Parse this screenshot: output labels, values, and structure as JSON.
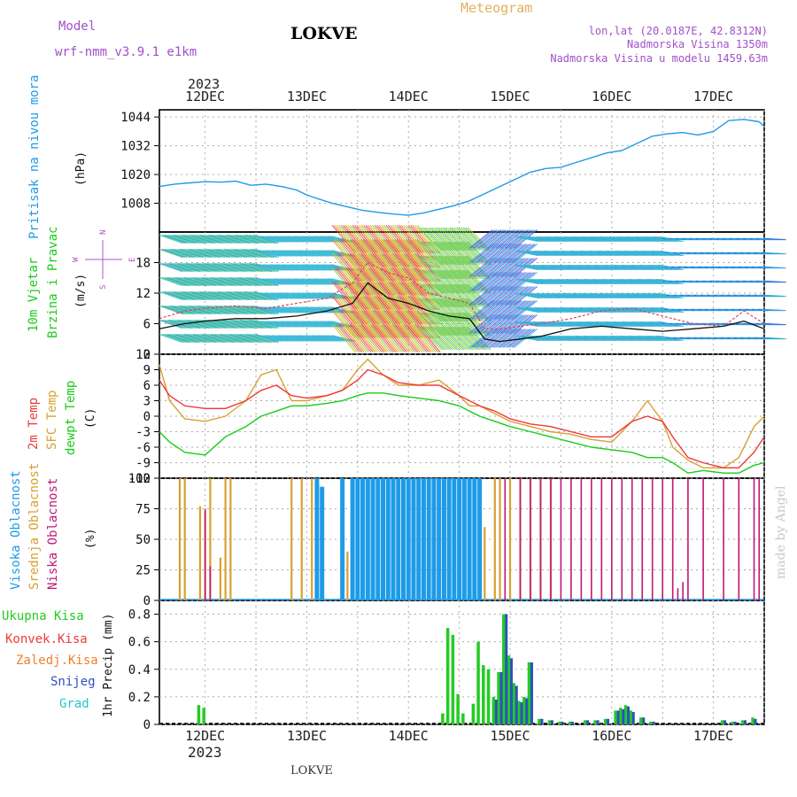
{
  "header": {
    "model_label": "Model",
    "model_name": "wrf-nmm_v3.9.1  e1km",
    "station": "LOKVE",
    "product": "Meteogram",
    "lonlat": "lon,lat (20.0187E, 42.8312N)",
    "elevation": "Nadmorska Visina 1350m",
    "model_elevation": "Nadmorska Visina u modelu 1459.63m",
    "watermark": "made by Angel",
    "footer_station": "LOKVE"
  },
  "colors": {
    "pressure": "#1e9be8",
    "temp2m": "#ee3a3a",
    "sfc_temp": "#d8a030",
    "dewpt": "#18cc18",
    "high_cloud": "#1e9be8",
    "mid_cloud": "#d8a030",
    "low_cloud": "#c01878",
    "total_precip": "#22cc22",
    "conv_precip": "#ee3a3a",
    "frz_precip": "#f08030",
    "snow": "#3050c0",
    "hail": "#20c8c8",
    "wind_speed": "#111111",
    "wind_gust": "#e04060",
    "header_purple": "#a050c8",
    "header_gold": "#e0b060",
    "grid": "#aaaaaa"
  },
  "top_axis": {
    "year": "2023",
    "day_labels": [
      "12DEC",
      "13DEC",
      "14DEC",
      "15DEC",
      "16DEC",
      "17DEC"
    ]
  },
  "bottom_axis": {
    "year": "2023",
    "day_labels": [
      "12DEC",
      "13DEC",
      "14DEC",
      "15DEC",
      "16DEC",
      "17DEC"
    ]
  },
  "panel_labels": {
    "pressure": {
      "title": "Pritisak na nivou mora",
      "unit": "(hPa)"
    },
    "wind": {
      "title1": "10m Vjetar",
      "title2": "Brzina i Pravac",
      "unit": "(m/s)",
      "compass": "N",
      "compass_s": "S",
      "compass_w": "W",
      "compass_e": "E"
    },
    "temp": {
      "l1": "2m Temp",
      "l2": "SFC Temp",
      "l3": "dewpt Temp",
      "unit": "(C)"
    },
    "cloud": {
      "l1": "Visoka Oblacnost",
      "l2": "Srednja Oblacnost",
      "l3": "Niska Oblacnost",
      "unit": "(%)"
    },
    "precip": {
      "l1": "Ukupna Kisa",
      "l2": "Konvek.Kisa",
      "l3": "Zaledj.Kisa",
      "l4": "Snijeg",
      "l5": "Grad",
      "unit": "1hr Precip (mm)"
    }
  },
  "chart_data": [
    {
      "panel": "pressure",
      "type": "line",
      "x_range": [
        11.55,
        17.5
      ],
      "ylim": [
        996,
        1047
      ],
      "yticks": [
        "1008",
        "1020",
        "1032",
        "1044"
      ],
      "grid": true,
      "series": [
        {
          "x": [
            11.55,
            11.7,
            11.85,
            12.0,
            12.15,
            12.3,
            12.45,
            12.6,
            12.75,
            12.9,
            13.0,
            13.1,
            13.25,
            13.4,
            13.55,
            13.7,
            13.85,
            14.0,
            14.15,
            14.3,
            14.45,
            14.6,
            14.75,
            14.9,
            15.05,
            15.2,
            15.35,
            15.5,
            15.65,
            15.8,
            15.95,
            16.1,
            16.25,
            16.4,
            16.55,
            16.7,
            16.85,
            17.0,
            17.15,
            17.3,
            17.45,
            17.5
          ],
          "y": [
            1015,
            1016,
            1016.5,
            1017,
            1016.8,
            1017.2,
            1015.5,
            1016,
            1015,
            1013.5,
            1011.5,
            1010,
            1008,
            1006.5,
            1005,
            1004.2,
            1003.5,
            1003,
            1004,
            1005.5,
            1007,
            1009,
            1012,
            1015,
            1018,
            1021,
            1022.5,
            1023,
            1025,
            1027,
            1029,
            1030,
            1033,
            1036,
            1037,
            1037.5,
            1036.5,
            1038,
            1042.5,
            1043,
            1042,
            1040
          ]
        }
      ]
    },
    {
      "panel": "wind",
      "type": "line",
      "x_range": [
        11.55,
        17.5
      ],
      "ylim": [
        0,
        24
      ],
      "yticks": [
        "0",
        "6",
        "12",
        "18"
      ],
      "grid": true,
      "series": [
        {
          "name": "speed",
          "x": [
            11.55,
            11.8,
            12.0,
            12.3,
            12.6,
            12.9,
            13.2,
            13.45,
            13.6,
            13.8,
            14.0,
            14.2,
            14.4,
            14.6,
            14.75,
            14.9,
            15.1,
            15.3,
            15.6,
            15.9,
            16.2,
            16.5,
            16.8,
            17.1,
            17.3,
            17.5
          ],
          "y": [
            5,
            6,
            6.5,
            7,
            7,
            7.5,
            8.5,
            10,
            14,
            11,
            10,
            8.5,
            7.5,
            7,
            3,
            2.5,
            3,
            3.5,
            5,
            5.5,
            5,
            4.5,
            5,
            5.5,
            6.5,
            5
          ]
        },
        {
          "name": "gust",
          "x": [
            11.55,
            11.8,
            12.0,
            12.3,
            12.6,
            12.9,
            13.2,
            13.45,
            13.6,
            13.8,
            14.0,
            14.2,
            14.4,
            14.6,
            14.75,
            14.9,
            15.1,
            15.3,
            15.6,
            15.9,
            16.2,
            16.5,
            16.8,
            17.1,
            17.3,
            17.5
          ],
          "y": [
            7,
            8.5,
            9,
            9.5,
            9,
            10,
            11,
            14,
            18,
            16,
            15,
            12,
            11,
            10,
            5,
            5,
            5.5,
            6,
            7,
            8.5,
            9,
            7.5,
            6,
            5.5,
            8.5,
            6
          ]
        }
      ]
    },
    {
      "panel": "temperature",
      "type": "line",
      "x_range": [
        11.55,
        17.5
      ],
      "ylim": [
        -12,
        12
      ],
      "yticks": [
        "-12",
        "-9",
        "-6",
        "-3",
        "0",
        "3",
        "6",
        "9",
        "12"
      ],
      "grid": true,
      "series": [
        {
          "name": "2m",
          "x": [
            11.55,
            11.65,
            11.8,
            12.0,
            12.2,
            12.4,
            12.55,
            12.7,
            12.85,
            13.0,
            13.2,
            13.35,
            13.5,
            13.6,
            13.75,
            13.9,
            14.1,
            14.3,
            14.5,
            14.6,
            14.7,
            14.85,
            15.0,
            15.2,
            15.4,
            15.6,
            15.8,
            16.0,
            16.2,
            16.35,
            16.5,
            16.6,
            16.75,
            16.9,
            17.1,
            17.25,
            17.4,
            17.5
          ],
          "y": [
            7,
            4,
            2,
            1.5,
            1.5,
            3,
            5,
            6,
            4,
            3.5,
            4,
            5,
            7,
            9,
            8,
            6.5,
            6,
            6,
            4,
            3,
            2,
            1,
            -0.5,
            -1.5,
            -2,
            -3,
            -4,
            -4,
            -1,
            0,
            -1,
            -4,
            -8,
            -9,
            -10,
            -10,
            -7,
            -4
          ]
        },
        {
          "name": "sfc",
          "x": [
            11.55,
            11.65,
            11.8,
            12.0,
            12.2,
            12.4,
            12.55,
            12.7,
            12.85,
            13.0,
            13.2,
            13.35,
            13.5,
            13.6,
            13.75,
            13.9,
            14.1,
            14.3,
            14.5,
            14.6,
            14.7,
            14.85,
            15.0,
            15.2,
            15.4,
            15.6,
            15.8,
            16.0,
            16.2,
            16.35,
            16.5,
            16.6,
            16.75,
            16.9,
            17.1,
            17.25,
            17.4,
            17.5
          ],
          "y": [
            10,
            3,
            -0.5,
            -1,
            0,
            3,
            8,
            9,
            3,
            3,
            4,
            5,
            9,
            11,
            8,
            6,
            6,
            7,
            4,
            2,
            2,
            0.5,
            -1,
            -2,
            -3,
            -3.5,
            -4.5,
            -5,
            -1,
            3,
            -1,
            -6,
            -8.5,
            -10,
            -10,
            -8,
            -2,
            0
          ]
        },
        {
          "name": "dewpt",
          "x": [
            11.55,
            11.65,
            11.8,
            12.0,
            12.2,
            12.4,
            12.55,
            12.7,
            12.85,
            13.0,
            13.2,
            13.35,
            13.5,
            13.6,
            13.75,
            13.9,
            14.1,
            14.3,
            14.5,
            14.6,
            14.7,
            14.85,
            15.0,
            15.2,
            15.4,
            15.6,
            15.8,
            16.0,
            16.2,
            16.35,
            16.5,
            16.6,
            16.75,
            16.9,
            17.1,
            17.25,
            17.4,
            17.5
          ],
          "y": [
            -3,
            -5,
            -7,
            -7.5,
            -4,
            -2,
            0,
            1,
            2,
            2,
            2.5,
            3,
            4,
            4.5,
            4.5,
            4,
            3.5,
            3,
            2,
            1,
            0,
            -1,
            -2,
            -3,
            -4,
            -5,
            -6,
            -6.5,
            -7,
            -8,
            -8,
            -9,
            -11,
            -10.5,
            -11,
            -11,
            -9.5,
            -9
          ]
        }
      ]
    },
    {
      "panel": "cloud",
      "type": "bar",
      "x_range": [
        11.55,
        17.5
      ],
      "ylim": [
        0,
        100
      ],
      "yticks": [
        "0",
        "25",
        "50",
        "75",
        "100"
      ],
      "grid": true,
      "series": [
        {
          "name": "mid",
          "x": [
            11.75,
            11.8,
            11.95,
            12.0,
            12.05,
            12.15,
            12.2,
            12.25,
            12.85,
            12.95,
            13.05,
            13.1,
            13.35,
            13.4,
            13.45,
            13.55,
            13.6,
            13.65,
            13.7,
            13.75,
            13.8,
            14.55,
            14.6,
            14.65,
            14.7,
            14.75,
            14.85,
            14.9,
            15.0,
            15.1,
            15.2,
            15.3,
            15.4
          ],
          "y": [
            100,
            100,
            77,
            73,
            100,
            35,
            100,
            100,
            100,
            100,
            100,
            100,
            100,
            40,
            100,
            100,
            100,
            100,
            100,
            100,
            100,
            100,
            100,
            100,
            100,
            60,
            100,
            100,
            100,
            100,
            100,
            100,
            100
          ]
        },
        {
          "name": "high",
          "x": [
            13.1,
            13.15,
            13.35,
            13.45,
            13.5,
            13.55,
            13.6,
            13.65,
            13.7,
            13.75,
            13.8,
            13.85,
            13.9,
            13.95,
            14.0,
            14.05,
            14.1,
            14.15,
            14.2,
            14.25,
            14.3,
            14.35,
            14.4,
            14.45,
            14.5,
            14.55,
            14.6,
            14.65,
            14.7
          ],
          "y": [
            100,
            93,
            100,
            100,
            100,
            100,
            100,
            100,
            100,
            100,
            100,
            100,
            100,
            100,
            100,
            100,
            100,
            100,
            100,
            100,
            100,
            100,
            100,
            100,
            100,
            100,
            100,
            100,
            100
          ]
        },
        {
          "name": "low",
          "x": [
            12.0,
            12.05,
            14.95,
            15.1,
            15.2,
            15.3,
            15.4,
            15.5,
            15.6,
            15.7,
            15.8,
            15.9,
            16.0,
            16.1,
            16.2,
            16.3,
            16.4,
            16.5,
            16.6,
            16.65,
            16.7,
            16.75,
            16.9,
            17.1,
            17.25,
            17.4,
            17.45
          ],
          "y": [
            75,
            28,
            100,
            100,
            100,
            100,
            100,
            100,
            100,
            100,
            100,
            100,
            100,
            100,
            100,
            100,
            100,
            100,
            100,
            10,
            15,
            100,
            100,
            100,
            100,
            100,
            100
          ]
        }
      ]
    },
    {
      "panel": "precip",
      "type": "bar",
      "x_range": [
        11.55,
        17.5
      ],
      "ylim": [
        0,
        0.9
      ],
      "yticks": [
        "0",
        "0.2",
        "0.4",
        "0.6",
        "0.8"
      ],
      "grid": true,
      "series": [
        {
          "name": "total",
          "x": [
            11.95,
            12.0,
            14.35,
            14.4,
            14.45,
            14.5,
            14.55,
            14.65,
            14.7,
            14.75,
            14.8,
            14.85,
            14.9,
            14.95,
            15.0,
            15.05,
            15.1,
            15.15,
            15.2,
            15.3,
            15.4,
            15.5,
            15.6,
            15.75,
            15.85,
            15.95,
            16.05,
            16.1,
            16.15,
            16.2,
            16.3,
            16.4,
            17.1,
            17.2,
            17.3,
            17.4
          ],
          "y": [
            0.14,
            0.12,
            0.08,
            0.7,
            0.65,
            0.22,
            0.08,
            0.15,
            0.6,
            0.43,
            0.4,
            0.2,
            0.38,
            0.8,
            0.5,
            0.3,
            0.17,
            0.2,
            0.45,
            0.04,
            0.03,
            0.02,
            0.02,
            0.03,
            0.03,
            0.04,
            0.1,
            0.12,
            0.14,
            0.1,
            0.05,
            0.02,
            0.03,
            0.02,
            0.03,
            0.05
          ]
        },
        {
          "name": "snow",
          "x": [
            14.85,
            14.9,
            14.95,
            15.0,
            15.05,
            15.1,
            15.15,
            15.2,
            15.3,
            15.4,
            15.5,
            15.6,
            15.75,
            15.85,
            15.95,
            16.05,
            16.1,
            16.15,
            16.2,
            16.3,
            16.4,
            17.1,
            17.2,
            17.3,
            17.4
          ],
          "y": [
            0.18,
            0.38,
            0.8,
            0.48,
            0.28,
            0.16,
            0.19,
            0.45,
            0.04,
            0.03,
            0.02,
            0.02,
            0.03,
            0.03,
            0.04,
            0.1,
            0.11,
            0.13,
            0.09,
            0.05,
            0.02,
            0.03,
            0.02,
            0.03,
            0.04
          ]
        }
      ]
    }
  ]
}
